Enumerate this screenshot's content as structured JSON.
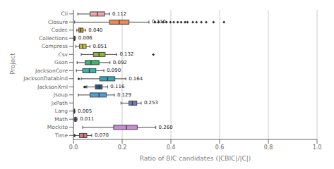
{
  "chart_data": {
    "type": "box",
    "orientation": "horizontal",
    "categories": [
      "Cli",
      "Closure",
      "Codec",
      "Collections",
      "Compress",
      "Csv",
      "Gson",
      "JacksonCore",
      "JacksonDatabind",
      "JacksonXml",
      "Jsoup",
      "JxPath",
      "Lang",
      "Math",
      "Mockito",
      "Time"
    ],
    "boxes": [
      {
        "q1": 0.068,
        "med": 0.098,
        "q3": 0.128,
        "whislo": 0.018,
        "whishi": 0.148,
        "fliers": []
      },
      {
        "q1": 0.148,
        "med": 0.188,
        "q3": 0.228,
        "whislo": 0.005,
        "whishi": 0.31,
        "fliers": [
          0.335,
          0.35,
          0.368,
          0.382,
          0.398,
          0.412,
          0.428,
          0.442,
          0.458,
          0.468,
          0.49,
          0.505,
          0.525,
          0.545,
          0.575,
          0.618
        ]
      },
      {
        "q1": 0.022,
        "med": 0.03,
        "q3": 0.04,
        "whislo": 0.014,
        "whishi": 0.05,
        "fliers": []
      },
      {
        "q1": 0.002,
        "med": 0.004,
        "q3": 0.006,
        "whislo": 0.001,
        "whishi": 0.008,
        "fliers": []
      },
      {
        "q1": 0.025,
        "med": 0.038,
        "q3": 0.052,
        "whislo": 0.01,
        "whishi": 0.068,
        "fliers": []
      },
      {
        "q1": 0.082,
        "med": 0.105,
        "q3": 0.13,
        "whislo": 0.032,
        "whishi": 0.178,
        "fliers": [
          0.328
        ]
      },
      {
        "q1": 0.048,
        "med": 0.072,
        "q3": 0.105,
        "whislo": 0.015,
        "whishi": 0.15,
        "fliers": []
      },
      {
        "q1": 0.038,
        "med": 0.065,
        "q3": 0.092,
        "whislo": 0.012,
        "whishi": 0.125,
        "fliers": []
      },
      {
        "q1": 0.108,
        "med": 0.14,
        "q3": 0.17,
        "whislo": 0.032,
        "whishi": 0.215,
        "fliers": [
          0.022
        ]
      },
      {
        "q1": 0.09,
        "med": 0.105,
        "q3": 0.118,
        "whislo": 0.055,
        "whishi": 0.14,
        "fliers": [
          0.045,
          0.05
        ]
      },
      {
        "q1": 0.068,
        "med": 0.105,
        "q3": 0.135,
        "whislo": 0.02,
        "whishi": 0.168,
        "fliers": []
      },
      {
        "q1": 0.228,
        "med": 0.242,
        "q3": 0.26,
        "whislo": 0.195,
        "whishi": 0.278,
        "fliers": []
      },
      {
        "q1": 0.002,
        "med": 0.003,
        "q3": 0.005,
        "whislo": 0.001,
        "whishi": 0.006,
        "fliers": []
      },
      {
        "q1": 0.005,
        "med": 0.008,
        "q3": 0.012,
        "whislo": 0.002,
        "whishi": 0.015,
        "fliers": []
      },
      {
        "q1": 0.165,
        "med": 0.218,
        "q3": 0.262,
        "whislo": 0.038,
        "whishi": 0.338,
        "fliers": []
      },
      {
        "q1": 0.025,
        "med": 0.042,
        "q3": 0.055,
        "whislo": 0.005,
        "whishi": 0.075,
        "fliers": [
          0.003,
          0.005
        ]
      }
    ],
    "values": [
      0.112,
      0.21,
      0.04,
      0.006,
      0.051,
      0.132,
      0.092,
      0.09,
      0.164,
      0.116,
      0.129,
      0.253,
      0.005,
      0.011,
      0.26,
      0.07
    ],
    "value_labels": [
      "0.112",
      "0.210",
      "0.040",
      "0.006",
      "0.051",
      "0.132",
      "0.092",
      "0.090",
      "0.164",
      "0.116",
      "0.129",
      "0.253",
      "0.005",
      "0.011",
      "0.260",
      "0.070"
    ],
    "data_labels": true,
    "colors": [
      "#f4a0b0",
      "#f4874b",
      "#d4960f",
      "#d4960f",
      "#c8c030",
      "#90b830",
      "#38b870",
      "#30b8a8",
      "#30a8b8",
      "#285888",
      "#48a0e0",
      "#7878c8",
      "#885898",
      "#784090",
      "#cc88d8",
      "#e07888"
    ],
    "xlabel": "Ratio of BIC candidates (|CBIC|/|C|)",
    "ylabel": "Project",
    "xlim": [
      0.0,
      1.0
    ],
    "xticks": [
      {
        "value": 0,
        "label": "0.0"
      },
      0.2,
      0.4,
      0.6,
      0.8,
      {
        "value": 1,
        "label": "1.0"
      }
    ],
    "grid": true
  }
}
